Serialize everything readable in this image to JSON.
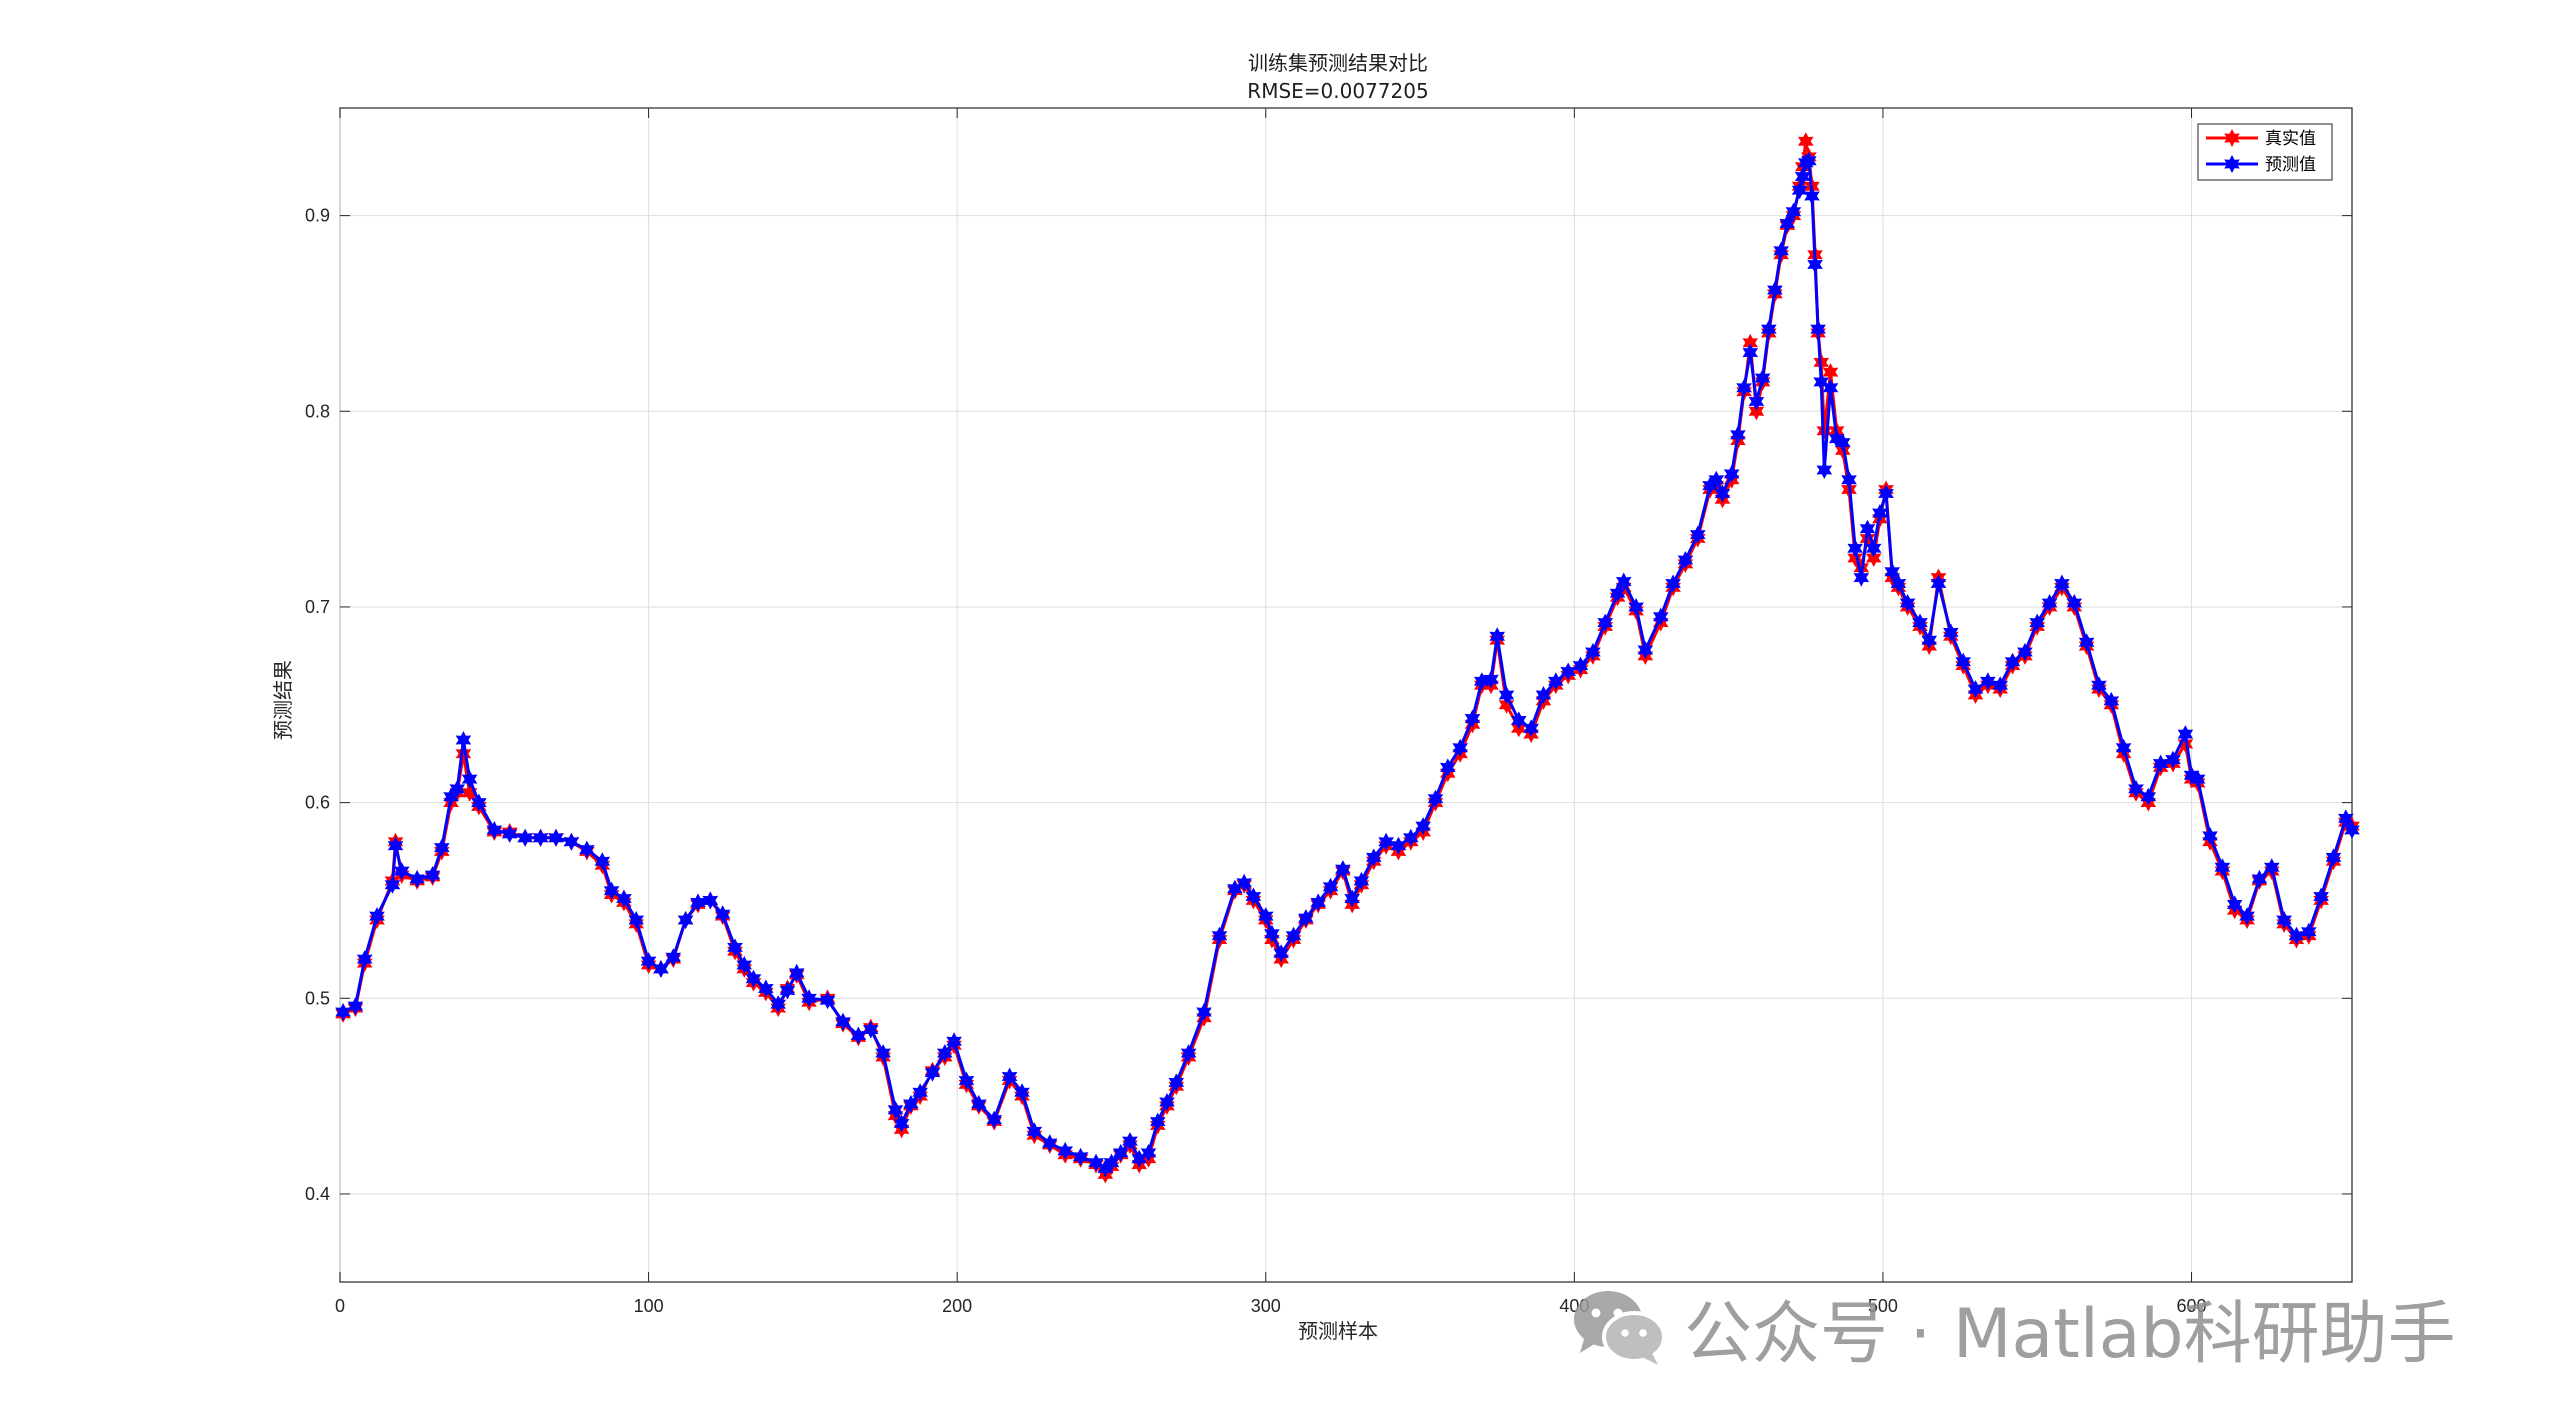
{
  "chart_data": {
    "type": "line",
    "title": "训练集预测结果对比",
    "subtitle": "RMSE=0.0077205",
    "xlabel": "预测样本",
    "ylabel": "预测结果",
    "xlim": [
      0,
      652
    ],
    "ylim": [
      0.355,
      0.955
    ],
    "xticks": [
      0,
      100,
      200,
      300,
      400,
      500,
      600
    ],
    "yticks": [
      0.4,
      0.5,
      0.6,
      0.7,
      0.8,
      0.9
    ],
    "ytick_labels": [
      "0.4",
      "0.5",
      "0.6",
      "0.7",
      "0.8",
      "0.9"
    ],
    "grid": true,
    "legend_position": "top-right",
    "marker": "hexagram",
    "series": [
      {
        "name": "真实值",
        "color": "#ff0000",
        "x": [
          1,
          5,
          8,
          12,
          17,
          18,
          20,
          25,
          30,
          33,
          36,
          38,
          40,
          42,
          45,
          50,
          55,
          60,
          65,
          70,
          75,
          80,
          85,
          88,
          92,
          96,
          100,
          104,
          108,
          112,
          116,
          120,
          124,
          128,
          131,
          134,
          138,
          142,
          145,
          148,
          152,
          158,
          163,
          168,
          172,
          176,
          180,
          182,
          185,
          188,
          192,
          196,
          199,
          203,
          207,
          212,
          217,
          221,
          225,
          230,
          235,
          240,
          245,
          248,
          250,
          253,
          256,
          259,
          262,
          265,
          268,
          271,
          275,
          280,
          285,
          290,
          293,
          296,
          300,
          302,
          305,
          309,
          313,
          317,
          321,
          325,
          328,
          331,
          335,
          339,
          343,
          347,
          351,
          355,
          359,
          363,
          367,
          370,
          373,
          375,
          378,
          382,
          386,
          390,
          394,
          398,
          402,
          406,
          410,
          414,
          416,
          420,
          423,
          428,
          432,
          436,
          440,
          444,
          446,
          448,
          451,
          453,
          455,
          457,
          459,
          461,
          463,
          465,
          467,
          469,
          471,
          473,
          474,
          475,
          476,
          477,
          478,
          479,
          480,
          481,
          483,
          485,
          487,
          489,
          491,
          493,
          495,
          497,
          499,
          501,
          503,
          505,
          508,
          512,
          515,
          518,
          522,
          526,
          530,
          534,
          538,
          542,
          546,
          550,
          554,
          558,
          562,
          566,
          570,
          574,
          578,
          582,
          586,
          590,
          594,
          598,
          600,
          602,
          606,
          610,
          614,
          618,
          622,
          626,
          630,
          634,
          638,
          642,
          646,
          650,
          652
        ],
        "y": [
          0.492,
          0.495,
          0.518,
          0.54,
          0.56,
          0.58,
          0.563,
          0.56,
          0.562,
          0.575,
          0.6,
          0.605,
          0.625,
          0.605,
          0.598,
          0.585,
          0.585,
          0.582,
          0.582,
          0.582,
          0.58,
          0.575,
          0.568,
          0.553,
          0.549,
          0.538,
          0.517,
          0.515,
          0.52,
          0.54,
          0.548,
          0.55,
          0.542,
          0.524,
          0.515,
          0.508,
          0.503,
          0.495,
          0.505,
          0.512,
          0.498,
          0.5,
          0.487,
          0.48,
          0.485,
          0.47,
          0.44,
          0.433,
          0.445,
          0.45,
          0.463,
          0.47,
          0.476,
          0.456,
          0.445,
          0.437,
          0.458,
          0.45,
          0.43,
          0.425,
          0.42,
          0.418,
          0.415,
          0.41,
          0.414,
          0.42,
          0.425,
          0.415,
          0.418,
          0.435,
          0.445,
          0.455,
          0.47,
          0.49,
          0.53,
          0.555,
          0.558,
          0.55,
          0.54,
          0.53,
          0.52,
          0.53,
          0.54,
          0.548,
          0.555,
          0.565,
          0.548,
          0.558,
          0.57,
          0.578,
          0.575,
          0.58,
          0.585,
          0.6,
          0.615,
          0.625,
          0.64,
          0.66,
          0.66,
          0.683,
          0.65,
          0.638,
          0.635,
          0.652,
          0.66,
          0.665,
          0.668,
          0.675,
          0.69,
          0.705,
          0.71,
          0.698,
          0.675,
          0.692,
          0.71,
          0.722,
          0.735,
          0.76,
          0.762,
          0.755,
          0.765,
          0.785,
          0.81,
          0.835,
          0.8,
          0.815,
          0.84,
          0.86,
          0.88,
          0.895,
          0.9,
          0.915,
          0.925,
          0.938,
          0.93,
          0.915,
          0.88,
          0.84,
          0.825,
          0.79,
          0.82,
          0.79,
          0.78,
          0.76,
          0.725,
          0.72,
          0.735,
          0.725,
          0.745,
          0.76,
          0.715,
          0.71,
          0.7,
          0.69,
          0.68,
          0.715,
          0.685,
          0.67,
          0.655,
          0.66,
          0.658,
          0.67,
          0.675,
          0.69,
          0.7,
          0.71,
          0.7,
          0.68,
          0.658,
          0.65,
          0.625,
          0.605,
          0.6,
          0.618,
          0.62,
          0.63,
          0.612,
          0.61,
          0.58,
          0.565,
          0.545,
          0.54,
          0.56,
          0.565,
          0.538,
          0.53,
          0.532,
          0.55,
          0.57,
          0.59,
          0.588
        ],
        "line_width": 3,
        "marker": "hexagram"
      },
      {
        "name": "预测值",
        "color": "#0000ff",
        "x": [
          1,
          5,
          8,
          12,
          17,
          18,
          20,
          25,
          30,
          33,
          36,
          38,
          40,
          42,
          45,
          50,
          55,
          60,
          65,
          70,
          75,
          80,
          85,
          88,
          92,
          96,
          100,
          104,
          108,
          112,
          116,
          120,
          124,
          128,
          131,
          134,
          138,
          142,
          145,
          148,
          152,
          158,
          163,
          168,
          172,
          176,
          180,
          182,
          185,
          188,
          192,
          196,
          199,
          203,
          207,
          212,
          217,
          221,
          225,
          230,
          235,
          240,
          245,
          248,
          250,
          253,
          256,
          259,
          262,
          265,
          268,
          271,
          275,
          280,
          285,
          290,
          293,
          296,
          300,
          302,
          305,
          309,
          313,
          317,
          321,
          325,
          328,
          331,
          335,
          339,
          343,
          347,
          351,
          355,
          359,
          363,
          367,
          370,
          373,
          375,
          378,
          382,
          386,
          390,
          394,
          398,
          402,
          406,
          410,
          414,
          416,
          420,
          423,
          428,
          432,
          436,
          440,
          444,
          446,
          448,
          451,
          453,
          455,
          457,
          459,
          461,
          463,
          465,
          467,
          469,
          471,
          473,
          474,
          475,
          476,
          477,
          478,
          479,
          480,
          481,
          483,
          485,
          487,
          489,
          491,
          493,
          495,
          497,
          499,
          501,
          503,
          505,
          508,
          512,
          515,
          518,
          522,
          526,
          530,
          534,
          538,
          542,
          546,
          550,
          554,
          558,
          562,
          566,
          570,
          574,
          578,
          582,
          586,
          590,
          594,
          598,
          600,
          602,
          606,
          610,
          614,
          618,
          622,
          626,
          630,
          634,
          638,
          642,
          646,
          650,
          652
        ],
        "y": [
          0.493,
          0.496,
          0.52,
          0.542,
          0.558,
          0.578,
          0.565,
          0.561,
          0.563,
          0.577,
          0.603,
          0.607,
          0.632,
          0.612,
          0.6,
          0.586,
          0.584,
          0.582,
          0.582,
          0.582,
          0.58,
          0.576,
          0.57,
          0.555,
          0.551,
          0.54,
          0.519,
          0.515,
          0.521,
          0.54,
          0.549,
          0.55,
          0.543,
          0.526,
          0.517,
          0.51,
          0.505,
          0.497,
          0.504,
          0.513,
          0.5,
          0.499,
          0.488,
          0.481,
          0.484,
          0.472,
          0.443,
          0.436,
          0.446,
          0.452,
          0.462,
          0.472,
          0.478,
          0.458,
          0.446,
          0.438,
          0.46,
          0.452,
          0.432,
          0.426,
          0.422,
          0.419,
          0.416,
          0.413,
          0.416,
          0.421,
          0.427,
          0.418,
          0.421,
          0.437,
          0.447,
          0.457,
          0.472,
          0.493,
          0.532,
          0.556,
          0.559,
          0.552,
          0.542,
          0.533,
          0.523,
          0.532,
          0.541,
          0.549,
          0.557,
          0.566,
          0.551,
          0.56,
          0.572,
          0.58,
          0.578,
          0.582,
          0.588,
          0.602,
          0.618,
          0.628,
          0.643,
          0.662,
          0.663,
          0.685,
          0.655,
          0.642,
          0.638,
          0.655,
          0.662,
          0.667,
          0.67,
          0.677,
          0.692,
          0.707,
          0.713,
          0.7,
          0.678,
          0.695,
          0.712,
          0.724,
          0.737,
          0.762,
          0.765,
          0.758,
          0.768,
          0.788,
          0.812,
          0.83,
          0.805,
          0.817,
          0.842,
          0.862,
          0.882,
          0.896,
          0.902,
          0.913,
          0.92,
          0.927,
          0.928,
          0.91,
          0.875,
          0.842,
          0.815,
          0.77,
          0.812,
          0.786,
          0.784,
          0.765,
          0.73,
          0.715,
          0.74,
          0.73,
          0.748,
          0.758,
          0.718,
          0.712,
          0.702,
          0.692,
          0.683,
          0.712,
          0.687,
          0.672,
          0.658,
          0.662,
          0.66,
          0.672,
          0.677,
          0.692,
          0.702,
          0.712,
          0.702,
          0.682,
          0.66,
          0.652,
          0.628,
          0.607,
          0.603,
          0.62,
          0.622,
          0.635,
          0.614,
          0.612,
          0.583,
          0.567,
          0.548,
          0.542,
          0.561,
          0.567,
          0.54,
          0.532,
          0.534,
          0.552,
          0.572,
          0.592,
          0.586
        ],
        "line_width": 3,
        "marker": "hexagram"
      }
    ]
  },
  "watermark": {
    "icon": "wechat-icon",
    "text": "公众号 · Matlab科研助手"
  }
}
